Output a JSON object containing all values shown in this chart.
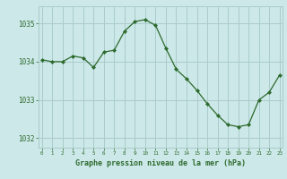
{
  "x": [
    0,
    1,
    2,
    3,
    4,
    5,
    6,
    7,
    8,
    9,
    10,
    11,
    12,
    13,
    14,
    15,
    16,
    17,
    18,
    19,
    20,
    21,
    22,
    23
  ],
  "y": [
    1034.05,
    1034.0,
    1034.0,
    1034.15,
    1034.1,
    1033.85,
    1034.25,
    1034.3,
    1034.8,
    1035.05,
    1035.1,
    1034.95,
    1034.35,
    1033.8,
    1033.55,
    1033.25,
    1032.9,
    1032.6,
    1032.35,
    1032.3,
    1032.35,
    1033.0,
    1033.2,
    1033.65
  ],
  "line_color": "#2d6a2d",
  "marker_color": "#2d6a2d",
  "bg_color": "#cce8e8",
  "grid_color": "#aacccc",
  "tick_label_color": "#2d6a2d",
  "xlabel": "Graphe pression niveau de la mer (hPa)",
  "xlabel_color": "#2d6a2d",
  "yticks": [
    1032,
    1033,
    1034,
    1035
  ],
  "xticks": [
    0,
    1,
    2,
    3,
    4,
    5,
    6,
    7,
    8,
    9,
    10,
    11,
    12,
    13,
    14,
    15,
    16,
    17,
    18,
    19,
    20,
    21,
    22,
    23
  ],
  "ylim": [
    1031.75,
    1035.45
  ],
  "xlim": [
    -0.3,
    23.3
  ]
}
